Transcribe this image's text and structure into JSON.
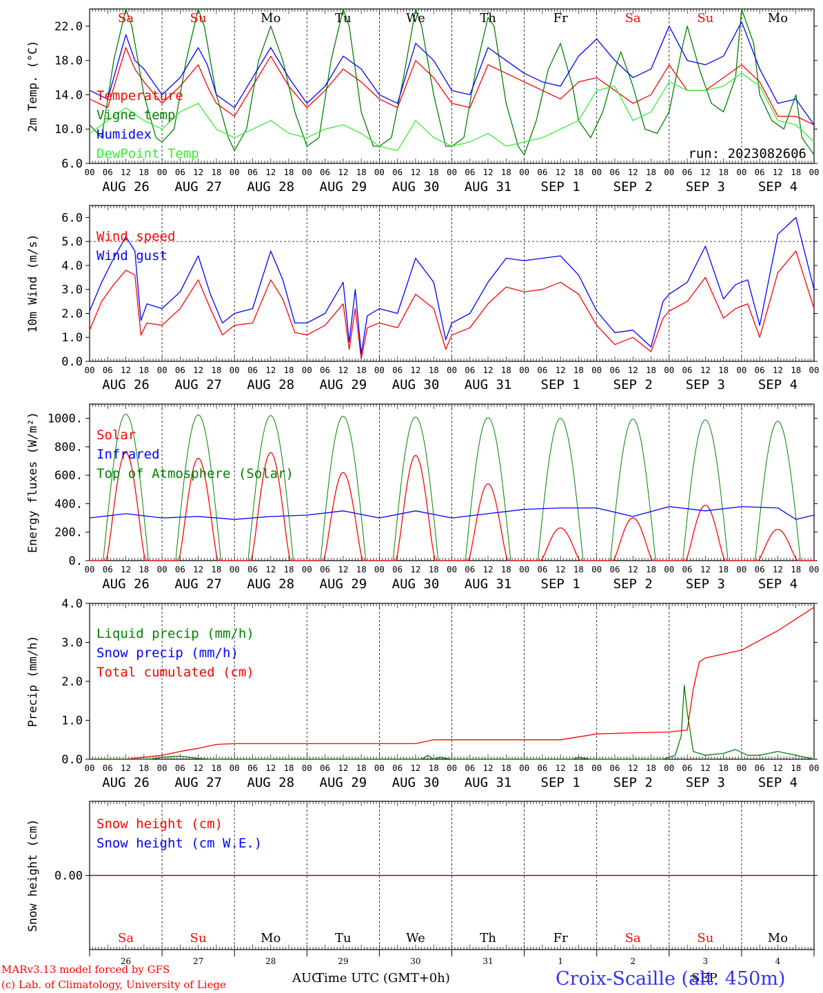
{
  "days": [
    "Sa",
    "Su",
    "Mo",
    "Tu",
    "We",
    "Th",
    "Fr",
    "Sa",
    "Su",
    "Mo"
  ],
  "weekend_days": [
    0,
    1,
    7,
    8
  ],
  "date_labels": [
    "AUG 26",
    "AUG 27",
    "AUG 28",
    "AUG 29",
    "AUG 30",
    "AUG 31",
    "SEP  1",
    "SEP  2",
    "SEP  3",
    "SEP  4"
  ],
  "hour_ticks": [
    "00",
    "06",
    "12",
    "18"
  ],
  "colors": {
    "red": "#ff0000",
    "green": "#008000",
    "blue": "#0000ff",
    "lime": "#33ee33",
    "purple": "#800080",
    "sitecolor": "#3333ee"
  },
  "footer": {
    "credit1": "MARv3.13 model forced by GFS",
    "credit2": "(c) Lab. of Climatology, University of Liege",
    "month_left": "AUG",
    "month_right": "SEP",
    "xlabel": "Time UTC (GMT+0h)",
    "site": "Croix-Scaille (alt. 450m)",
    "day_numbers": [
      "26",
      "27",
      "28",
      "29",
      "30",
      "31",
      "1",
      "2",
      "3",
      "4"
    ]
  },
  "chart_data": [
    {
      "id": "temperature",
      "type": "line",
      "ylabel": "2m Temp. (°C)",
      "yticks": [
        "6.0",
        "10.0",
        "14.0",
        "18.0",
        "22.0"
      ],
      "ylim": [
        6,
        24
      ],
      "run_label": "run: 2023082606",
      "x_unit": "hours since AUG 26 00 UTC",
      "legend": [
        {
          "name": "Temperature",
          "color": "red"
        },
        {
          "name": "Vigne temp",
          "color": "green"
        },
        {
          "name": "Humidex",
          "color": "blue"
        },
        {
          "name": "DewPoint Temp",
          "color": "lime"
        }
      ],
      "series": [
        {
          "name": "Temperature",
          "color": "red",
          "x": [
            0,
            6,
            12,
            15,
            18,
            24,
            30,
            36,
            39,
            42,
            48,
            54,
            60,
            66,
            72,
            78,
            84,
            90,
            96,
            102,
            108,
            114,
            120,
            126,
            132,
            138,
            144,
            150,
            156,
            162,
            168,
            174,
            180,
            186,
            192,
            198,
            204,
            210,
            216,
            222,
            228,
            234,
            240
          ],
          "y": [
            13.5,
            12.5,
            19.5,
            17,
            15.5,
            13,
            15,
            17.5,
            15,
            13,
            11.5,
            15,
            18.5,
            15,
            12.5,
            14.5,
            17,
            15.5,
            13.5,
            12.5,
            18,
            16,
            13,
            12.5,
            17.5,
            16.5,
            15.5,
            14.5,
            13.5,
            15.5,
            16,
            14.5,
            13,
            14,
            17.5,
            14.5,
            14.5,
            16,
            17.5,
            15.5,
            11.5,
            11.5,
            10.5
          ]
        },
        {
          "name": "Vigne temp",
          "color": "green",
          "x": [
            0,
            4,
            8,
            12,
            14,
            18,
            22,
            24,
            28,
            32,
            36,
            38,
            42,
            46,
            48,
            52,
            56,
            60,
            64,
            68,
            72,
            76,
            80,
            84,
            86,
            90,
            94,
            96,
            100,
            104,
            108,
            110,
            114,
            118,
            120,
            124,
            128,
            132,
            134,
            138,
            142,
            144,
            148,
            152,
            156,
            160,
            162,
            166,
            170,
            174,
            176,
            180,
            184,
            188,
            192,
            196,
            198,
            202,
            206,
            210,
            214,
            216,
            220,
            222,
            226,
            230,
            234,
            236,
            240
          ],
          "y": [
            10.5,
            9,
            18,
            24,
            22,
            14,
            9,
            8.5,
            10,
            18,
            24,
            22,
            14,
            9,
            7.5,
            10,
            18,
            22,
            18,
            12,
            8,
            9,
            18,
            24,
            22,
            12,
            8,
            8,
            9,
            16,
            24,
            22,
            14,
            8,
            8,
            9,
            17,
            23,
            22,
            13,
            8,
            7,
            11,
            17,
            20,
            15,
            11,
            9,
            12,
            17,
            19,
            15,
            10,
            9.5,
            12,
            19,
            22,
            17,
            13,
            12,
            16,
            24,
            20,
            14,
            11,
            10,
            14,
            9,
            7
          ]
        },
        {
          "name": "Humidex",
          "color": "blue",
          "x": [
            0,
            6,
            12,
            15,
            18,
            24,
            30,
            36,
            39,
            42,
            48,
            54,
            60,
            66,
            72,
            78,
            84,
            90,
            96,
            102,
            108,
            114,
            120,
            126,
            132,
            138,
            144,
            150,
            156,
            162,
            168,
            174,
            180,
            186,
            192,
            198,
            204,
            210,
            216,
            222,
            228,
            234,
            240
          ],
          "y": [
            14.5,
            13.5,
            21,
            18,
            17,
            14,
            16,
            19.5,
            17.5,
            14,
            12.5,
            16,
            19.5,
            16,
            13,
            15,
            18.5,
            17,
            14,
            13,
            20,
            18,
            14.5,
            14,
            19.5,
            18,
            16.5,
            15.5,
            15,
            18.5,
            20.5,
            18,
            16,
            17,
            22,
            18,
            17.5,
            18.5,
            22.5,
            17,
            13,
            13.5,
            10.5
          ]
        },
        {
          "name": "DewPoint Temp",
          "color": "lime",
          "x": [
            0,
            6,
            12,
            18,
            24,
            30,
            36,
            42,
            48,
            54,
            60,
            66,
            72,
            78,
            84,
            90,
            96,
            102,
            108,
            114,
            120,
            126,
            132,
            138,
            144,
            150,
            156,
            162,
            168,
            174,
            180,
            186,
            192,
            198,
            204,
            210,
            216,
            222,
            228,
            234,
            240
          ],
          "y": [
            9.5,
            11,
            12.5,
            11,
            10,
            12,
            13,
            10,
            9,
            10,
            11,
            9.5,
            9,
            10,
            10.5,
            9.5,
            8,
            7.5,
            11,
            9,
            8,
            8.5,
            9.5,
            8,
            8.5,
            9,
            10,
            11,
            14.5,
            15,
            11,
            12,
            15.5,
            14.5,
            14.5,
            15,
            16.5,
            15,
            11,
            10.5,
            8.5
          ]
        }
      ]
    },
    {
      "id": "wind",
      "type": "line",
      "ylabel": "10m Wind (m/s)",
      "yticks": [
        "0.0",
        "1.0",
        "2.0",
        "3.0",
        "4.0",
        "5.0",
        "6.0"
      ],
      "ylim": [
        0,
        6.5
      ],
      "reference_line": 5.0,
      "x_unit": "hours since AUG 26 00 UTC",
      "legend": [
        {
          "name": "Wind speed",
          "color": "red"
        },
        {
          "name": "Wind gust",
          "color": "blue"
        }
      ],
      "series": [
        {
          "name": "Wind speed",
          "color": "red",
          "x": [
            0,
            4,
            8,
            12,
            15,
            17,
            19,
            24,
            30,
            36,
            40,
            44,
            48,
            54,
            60,
            64,
            68,
            72,
            78,
            84,
            86,
            88,
            90,
            92,
            96,
            102,
            108,
            111,
            114,
            118,
            120,
            126,
            132,
            138,
            144,
            150,
            156,
            162,
            168,
            174,
            180,
            186,
            190,
            192,
            198,
            204,
            210,
            214,
            218,
            222,
            228,
            234,
            240
          ],
          "y": [
            1.3,
            2.5,
            3.2,
            3.8,
            3.6,
            1.1,
            1.6,
            1.5,
            2.2,
            3.4,
            2.2,
            1.1,
            1.5,
            1.6,
            3.4,
            2.6,
            1.2,
            1.1,
            1.5,
            2.4,
            0.5,
            2.2,
            0.1,
            1.4,
            1.6,
            1.4,
            2.8,
            2.5,
            2.2,
            0.5,
            1.1,
            1.4,
            2.4,
            3.1,
            2.9,
            3.0,
            3.3,
            2.8,
            1.5,
            0.7,
            1.0,
            0.4,
            1.8,
            2.1,
            2.5,
            3.5,
            1.8,
            2.2,
            2.4,
            1.0,
            3.7,
            4.6,
            2.2
          ]
        },
        {
          "name": "Wind gust",
          "color": "blue",
          "x": [
            0,
            4,
            8,
            12,
            15,
            17,
            19,
            24,
            30,
            36,
            40,
            44,
            48,
            54,
            60,
            64,
            68,
            72,
            78,
            84,
            86,
            88,
            90,
            92,
            96,
            102,
            108,
            111,
            114,
            118,
            120,
            126,
            132,
            138,
            144,
            150,
            156,
            162,
            168,
            174,
            180,
            186,
            190,
            192,
            198,
            204,
            210,
            214,
            218,
            222,
            228,
            234,
            240
          ],
          "y": [
            2.1,
            3.3,
            4.3,
            5.2,
            4.6,
            1.7,
            2.4,
            2.2,
            2.9,
            4.4,
            2.8,
            1.6,
            2.0,
            2.2,
            4.6,
            3.4,
            1.6,
            1.6,
            2.0,
            3.3,
            0.8,
            3.0,
            0.3,
            1.9,
            2.2,
            2.0,
            4.3,
            3.8,
            3.3,
            0.9,
            1.6,
            2.0,
            3.3,
            4.3,
            4.2,
            4.3,
            4.4,
            3.6,
            2.1,
            1.2,
            1.3,
            0.6,
            2.5,
            2.8,
            3.3,
            4.8,
            2.6,
            3.2,
            3.4,
            1.5,
            5.3,
            6.0,
            3.0
          ]
        }
      ]
    },
    {
      "id": "energy",
      "type": "line",
      "ylabel": "Energy fluxes (W/m²)",
      "yticks": [
        "0.",
        "200.",
        "400.",
        "600.",
        "800.",
        "1000."
      ],
      "ylim": [
        0,
        1100
      ],
      "x_unit": "hours since AUG 26 00 UTC",
      "legend": [
        {
          "name": "Solar",
          "color": "red"
        },
        {
          "name": "Infrared",
          "color": "blue"
        },
        {
          "name": "Top of Atmosphere (Solar)",
          "color": "green"
        }
      ],
      "toa_daily_peaks": [
        1030,
        1025,
        1020,
        1015,
        1010,
        1005,
        1000,
        995,
        990,
        980
      ],
      "solar_daily_peaks": [
        760,
        720,
        760,
        620,
        740,
        540,
        230,
        300,
        390,
        220
      ],
      "series": [
        {
          "name": "Infrared",
          "color": "blue",
          "x": [
            0,
            12,
            24,
            36,
            48,
            60,
            72,
            84,
            96,
            108,
            120,
            132,
            144,
            156,
            168,
            180,
            192,
            204,
            216,
            228,
            234,
            240
          ],
          "y": [
            300,
            330,
            300,
            310,
            290,
            310,
            320,
            350,
            300,
            350,
            300,
            330,
            360,
            370,
            370,
            310,
            380,
            350,
            380,
            370,
            290,
            320
          ]
        }
      ]
    },
    {
      "id": "precip",
      "type": "line",
      "ylabel": "Precip (mm/h)",
      "yticks": [
        "0.0",
        "1.0",
        "2.0",
        "3.0",
        "4.0"
      ],
      "ylim": [
        0,
        4
      ],
      "x_unit": "hours since AUG 26 00 UTC",
      "legend": [
        {
          "name": "Liquid precip (mm/h)",
          "color": "green"
        },
        {
          "name": "Snow precip (mm/h)",
          "color": "blue"
        },
        {
          "name": "Total cumulated (cm)",
          "color": "red"
        }
      ],
      "series": [
        {
          "name": "Total cumulated (cm)",
          "color": "red",
          "x": [
            0,
            12,
            18,
            24,
            30,
            36,
            42,
            48,
            72,
            96,
            108,
            114,
            120,
            144,
            156,
            168,
            180,
            192,
            198,
            200,
            202,
            204,
            216,
            228,
            234,
            240
          ],
          "y": [
            0,
            0,
            0.05,
            0.1,
            0.2,
            0.28,
            0.38,
            0.4,
            0.4,
            0.4,
            0.4,
            0.5,
            0.5,
            0.5,
            0.5,
            0.65,
            0.68,
            0.7,
            0.75,
            1.8,
            2.5,
            2.6,
            2.8,
            3.3,
            3.6,
            3.9
          ]
        },
        {
          "name": "Liquid precip (mm/h)",
          "color": "green",
          "x": [
            0,
            20,
            24,
            30,
            36,
            40,
            48,
            110,
            112,
            114,
            116,
            120,
            160,
            162,
            166,
            190,
            194,
            196,
            197,
            198,
            200,
            204,
            210,
            214,
            218,
            222,
            228,
            234,
            240
          ],
          "y": [
            0,
            0,
            0.05,
            0.08,
            0.02,
            0,
            0,
            0,
            0.1,
            0,
            0.05,
            0,
            0,
            0.05,
            0,
            0,
            0.1,
            0.6,
            1.9,
            1.2,
            0.2,
            0.1,
            0.15,
            0.25,
            0.1,
            0.1,
            0.2,
            0.1,
            0
          ]
        }
      ]
    },
    {
      "id": "snow",
      "type": "line",
      "ylabel": "Snow height (cm)",
      "yticks": [
        "0.00"
      ],
      "ylim": [
        -1,
        1
      ],
      "x_unit": "hours since AUG 26 00 UTC",
      "legend": [
        {
          "name": "Snow height (cm)",
          "color": "red"
        },
        {
          "name": "Snow height (cm W.E.)",
          "color": "blue"
        }
      ],
      "series": [
        {
          "name": "Snow height (cm)",
          "color": "purple",
          "x": [
            0,
            240
          ],
          "y": [
            0,
            0
          ]
        }
      ]
    }
  ]
}
